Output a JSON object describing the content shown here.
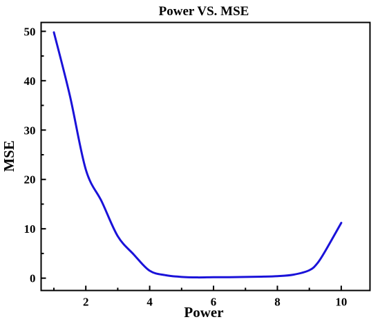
{
  "chart_data": {
    "type": "line",
    "title": "Power VS. MSE",
    "xlabel": "Power",
    "ylabel": "MSE",
    "xlim": [
      0.6,
      10.9
    ],
    "ylim": [
      -2.5,
      51.8
    ],
    "xticks": [
      2,
      4,
      6,
      8,
      10
    ],
    "yticks": [
      0,
      10,
      20,
      30,
      40,
      50
    ],
    "x_tick_labels": [
      "2",
      "4",
      "6",
      "8",
      "10"
    ],
    "y_tick_labels": [
      "0",
      "10",
      "20",
      "30",
      "40",
      "50"
    ],
    "grid": false,
    "legend": false,
    "series": [
      {
        "color": "#1a12d9",
        "x": [
          1.0,
          1.5,
          2.0,
          2.5,
          3.0,
          3.5,
          4.0,
          4.5,
          5.0,
          5.5,
          6.0,
          6.5,
          7.0,
          7.5,
          8.0,
          8.5,
          9.0,
          9.25,
          9.5,
          10.0
        ],
        "y": [
          49.8,
          37.0,
          22.0,
          15.5,
          8.5,
          4.8,
          1.5,
          0.6,
          0.25,
          0.15,
          0.2,
          0.2,
          0.25,
          0.3,
          0.4,
          0.7,
          1.6,
          3.0,
          5.5,
          11.2
        ]
      }
    ]
  }
}
